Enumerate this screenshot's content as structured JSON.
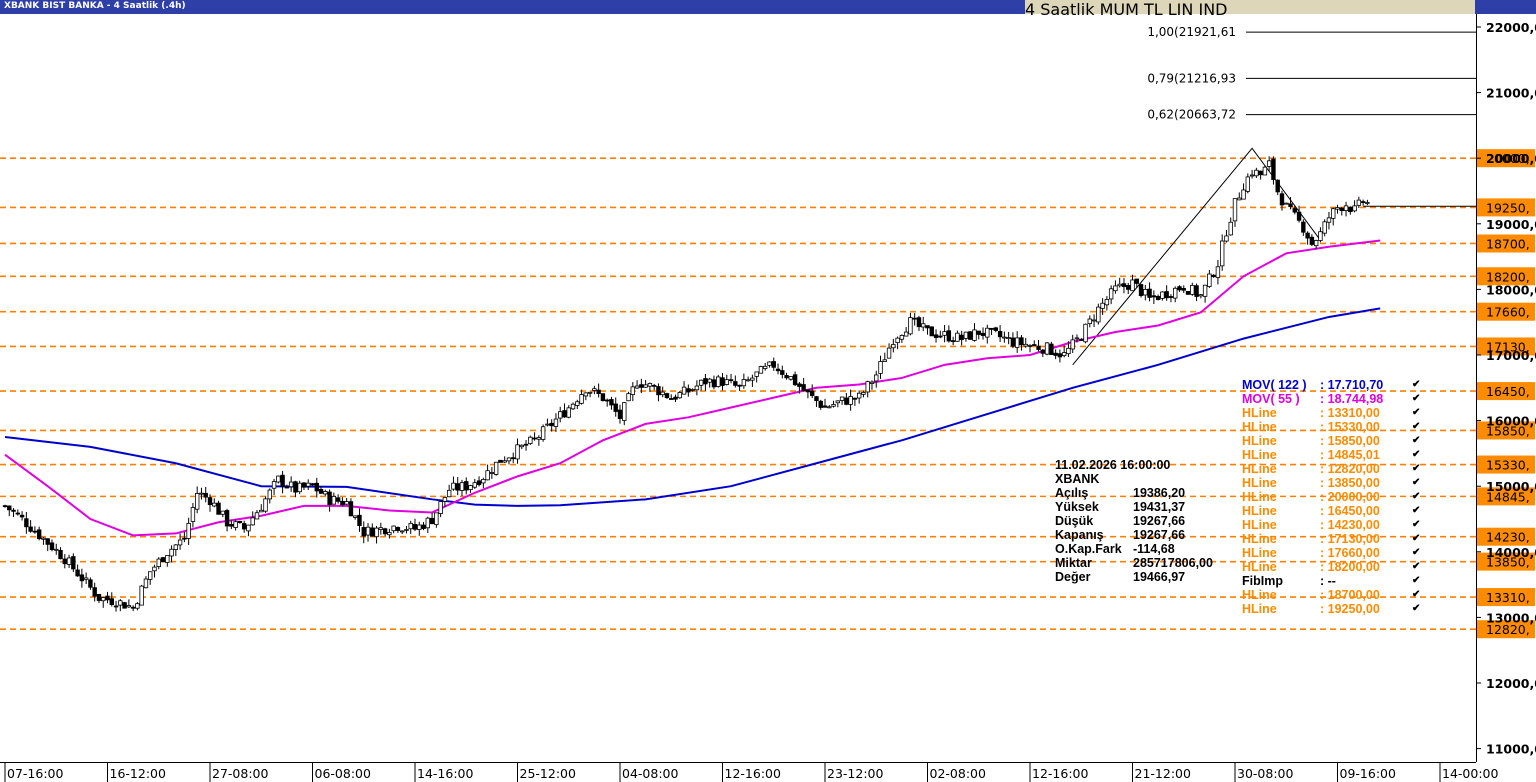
{
  "window": {
    "title": "XBANK BIST BANKA - 4 Saatlik (.4h)",
    "period_button": "4 Saatlik",
    "mode_buttons": [
      "MUM",
      "TL",
      "LIN",
      "IND"
    ]
  },
  "info_box": {
    "datetime": "11.02.2026  16:00:00",
    "symbol": "XBANK",
    "rows": [
      {
        "label": "Açılış",
        "value": "19386,20"
      },
      {
        "label": "Yüksek",
        "value": "19431,37"
      },
      {
        "label": "Düşük",
        "value": "19267,66"
      },
      {
        "label": "Kapanış",
        "value": "19267,66"
      },
      {
        "label": "O.Kap.Fark",
        "value": "-114,68"
      },
      {
        "label": "Miktar",
        "value": "285717806,00"
      },
      {
        "label": "Değer",
        "value": "19466,97"
      }
    ]
  },
  "legend": [
    {
      "name": "MOV( 122 )",
      "value": ": 17.710,70",
      "color": "#0000cc"
    },
    {
      "name": "MOV( 55 )",
      "value": ": 18.744,98",
      "color": "#e000e0"
    },
    {
      "name": "HLine",
      "value": ": 13310,00",
      "color": "#ff8c00"
    },
    {
      "name": "HLine",
      "value": ": 15330,00",
      "color": "#ff8c00"
    },
    {
      "name": "HLine",
      "value": ": 15850,00",
      "color": "#ff8c00"
    },
    {
      "name": "HLine",
      "value": ": 14845,01",
      "color": "#ff8c00"
    },
    {
      "name": "HLine",
      "value": ": 12820,00",
      "color": "#ff8c00"
    },
    {
      "name": "HLine",
      "value": ": 13850,00",
      "color": "#ff8c00"
    },
    {
      "name": "HLine",
      "value": ": 20000,00",
      "color": "#ff8c00"
    },
    {
      "name": "HLine",
      "value": ": 16450,00",
      "color": "#ff8c00"
    },
    {
      "name": "HLine",
      "value": ": 14230,00",
      "color": "#ff8c00"
    },
    {
      "name": "HLine",
      "value": ": 17130,00",
      "color": "#ff8c00"
    },
    {
      "name": "HLine",
      "value": ": 17660,00",
      "color": "#ff8c00"
    },
    {
      "name": "HLine",
      "value": ": 18200,00",
      "color": "#ff8c00"
    },
    {
      "name": "FibImp",
      "value": ": --",
      "color": "#000000"
    },
    {
      "name": "HLine",
      "value": ": 18700,00",
      "color": "#ff8c00"
    },
    {
      "name": "HLine",
      "value": ": 19250,00",
      "color": "#ff8c00"
    }
  ],
  "chart_data": {
    "type": "candlestick",
    "symbol": "XBANK",
    "timeframe": "4 Saatlik",
    "ylim": [
      10800,
      22300
    ],
    "y_ticks": [
      11000,
      12000,
      13000,
      14000,
      15000,
      16000,
      17000,
      18000,
      19000,
      20000,
      21000,
      22000
    ],
    "y_tick_labels": [
      "11000,0",
      "12000,0",
      "13000,0",
      "14000,0",
      "15000,0",
      "16000,0",
      "17000,0",
      "18000,0",
      "19000,0",
      "20000,0",
      "21000,0",
      "22000,0"
    ],
    "x_tick_labels": [
      "07-16:00",
      "16-12:00",
      "27-08:00",
      "06-08:00",
      "14-16:00",
      "25-12:00",
      "04-08:00",
      "12-16:00",
      "23-12:00",
      "02-08:00",
      "12-16:00",
      "21-12:00",
      "30-08:00",
      "09-16:00",
      "14-00:00"
    ],
    "x_tick_bars": [
      0,
      24,
      48,
      72,
      96,
      120,
      144,
      168,
      192,
      216,
      240,
      264,
      288,
      312,
      336
    ],
    "bar_count": 320,
    "hlines": [
      {
        "value": 20000,
        "label": "20000,"
      },
      {
        "value": 19250,
        "label": "19250,"
      },
      {
        "value": 18700,
        "label": "18700,"
      },
      {
        "value": 18200,
        "label": "18200,"
      },
      {
        "value": 17660,
        "label": "17660,"
      },
      {
        "value": 17130,
        "label": "17130,"
      },
      {
        "value": 16450,
        "label": "16450,"
      },
      {
        "value": 15850,
        "label": "15850,"
      },
      {
        "value": 15330,
        "label": "15330,"
      },
      {
        "value": 14845,
        "label": "14845,"
      },
      {
        "value": 14230,
        "label": "14230,"
      },
      {
        "value": 13850,
        "label": "13850,"
      },
      {
        "value": 13310,
        "label": "13310,"
      },
      {
        "value": 12820,
        "label": "12820,"
      }
    ],
    "fib_levels": [
      {
        "value": 21921.61,
        "label": "1,00(21921,61"
      },
      {
        "value": 21216.93,
        "label": "0,79(21216,93"
      },
      {
        "value": 20663.72,
        "label": "0,62(20663,72"
      }
    ],
    "fib_line": {
      "x_bar": [
        250,
        292,
        308
      ],
      "y": [
        16850,
        20150,
        18750
      ]
    },
    "last_close_line": {
      "value": 19267.66
    },
    "price_path": {
      "bars": [
        0,
        4,
        9,
        14,
        18,
        22,
        26,
        30,
        34,
        38,
        42,
        45,
        48,
        52,
        56,
        60,
        64,
        68,
        72,
        76,
        80,
        84,
        88,
        92,
        96,
        100,
        104,
        108,
        112,
        116,
        120,
        124,
        128,
        132,
        136,
        140,
        144,
        148,
        152,
        156,
        160,
        164,
        168,
        172,
        176,
        180,
        184,
        188,
        192,
        196,
        200,
        204,
        208,
        212,
        216,
        220,
        224,
        228,
        232,
        236,
        240,
        244,
        248,
        252,
        256,
        260,
        264,
        268,
        272,
        276,
        280,
        284,
        286,
        288,
        290,
        292,
        294,
        296,
        298,
        300,
        302,
        304,
        306,
        308,
        310,
        312,
        314,
        316,
        318,
        320
      ],
      "close": [
        14700,
        14500,
        14200,
        13900,
        13600,
        13300,
        13250,
        13150,
        13700,
        14000,
        14200,
        14900,
        14800,
        14450,
        14350,
        14700,
        15100,
        14950,
        15000,
        14800,
        14750,
        14300,
        14350,
        14400,
        14350,
        14500,
        14950,
        15000,
        15150,
        15400,
        15550,
        15700,
        15950,
        16200,
        16500,
        16350,
        16050,
        16600,
        16500,
        16350,
        16450,
        16600,
        16600,
        16500,
        16700,
        16850,
        16650,
        16400,
        16200,
        16300,
        16350,
        16700,
        17250,
        17500,
        17350,
        17300,
        17250,
        17350,
        17300,
        17200,
        17150,
        17100,
        17000,
        17300,
        17700,
        18000,
        18100,
        17850,
        17950,
        18050,
        17900,
        18400,
        18900,
        19300,
        19600,
        19800,
        19750,
        19900,
        19500,
        19250,
        19100,
        18950,
        18700,
        18850,
        19100,
        19250,
        19300,
        19200,
        19350,
        19270
      ]
    },
    "series": [
      {
        "name": "MOV( 122 )",
        "color": "#0000cc",
        "x_bar": [
          0,
          20,
          40,
          60,
          80,
          100,
          110,
          120,
          130,
          150,
          170,
          190,
          210,
          230,
          250,
          270,
          290,
          310,
          322
        ],
        "y": [
          15750,
          15600,
          15350,
          15000,
          14990,
          14800,
          14720,
          14700,
          14710,
          14800,
          15000,
          15350,
          15700,
          16100,
          16500,
          16850,
          17250,
          17580,
          17710.7
        ]
      },
      {
        "name": "MOV( 55 )",
        "color": "#e000e0",
        "x_bar": [
          0,
          10,
          20,
          30,
          40,
          50,
          60,
          70,
          80,
          90,
          100,
          110,
          120,
          130,
          140,
          150,
          160,
          170,
          180,
          190,
          200,
          210,
          220,
          230,
          240,
          250,
          260,
          270,
          280,
          290,
          300,
          310,
          322
        ],
        "y": [
          15480,
          15000,
          14500,
          14250,
          14280,
          14450,
          14550,
          14700,
          14700,
          14630,
          14600,
          14900,
          15150,
          15350,
          15700,
          15950,
          16050,
          16200,
          16350,
          16500,
          16550,
          16650,
          16850,
          16950,
          17000,
          17200,
          17350,
          17450,
          17650,
          18200,
          18550,
          18650,
          18744.98
        ]
      }
    ]
  }
}
